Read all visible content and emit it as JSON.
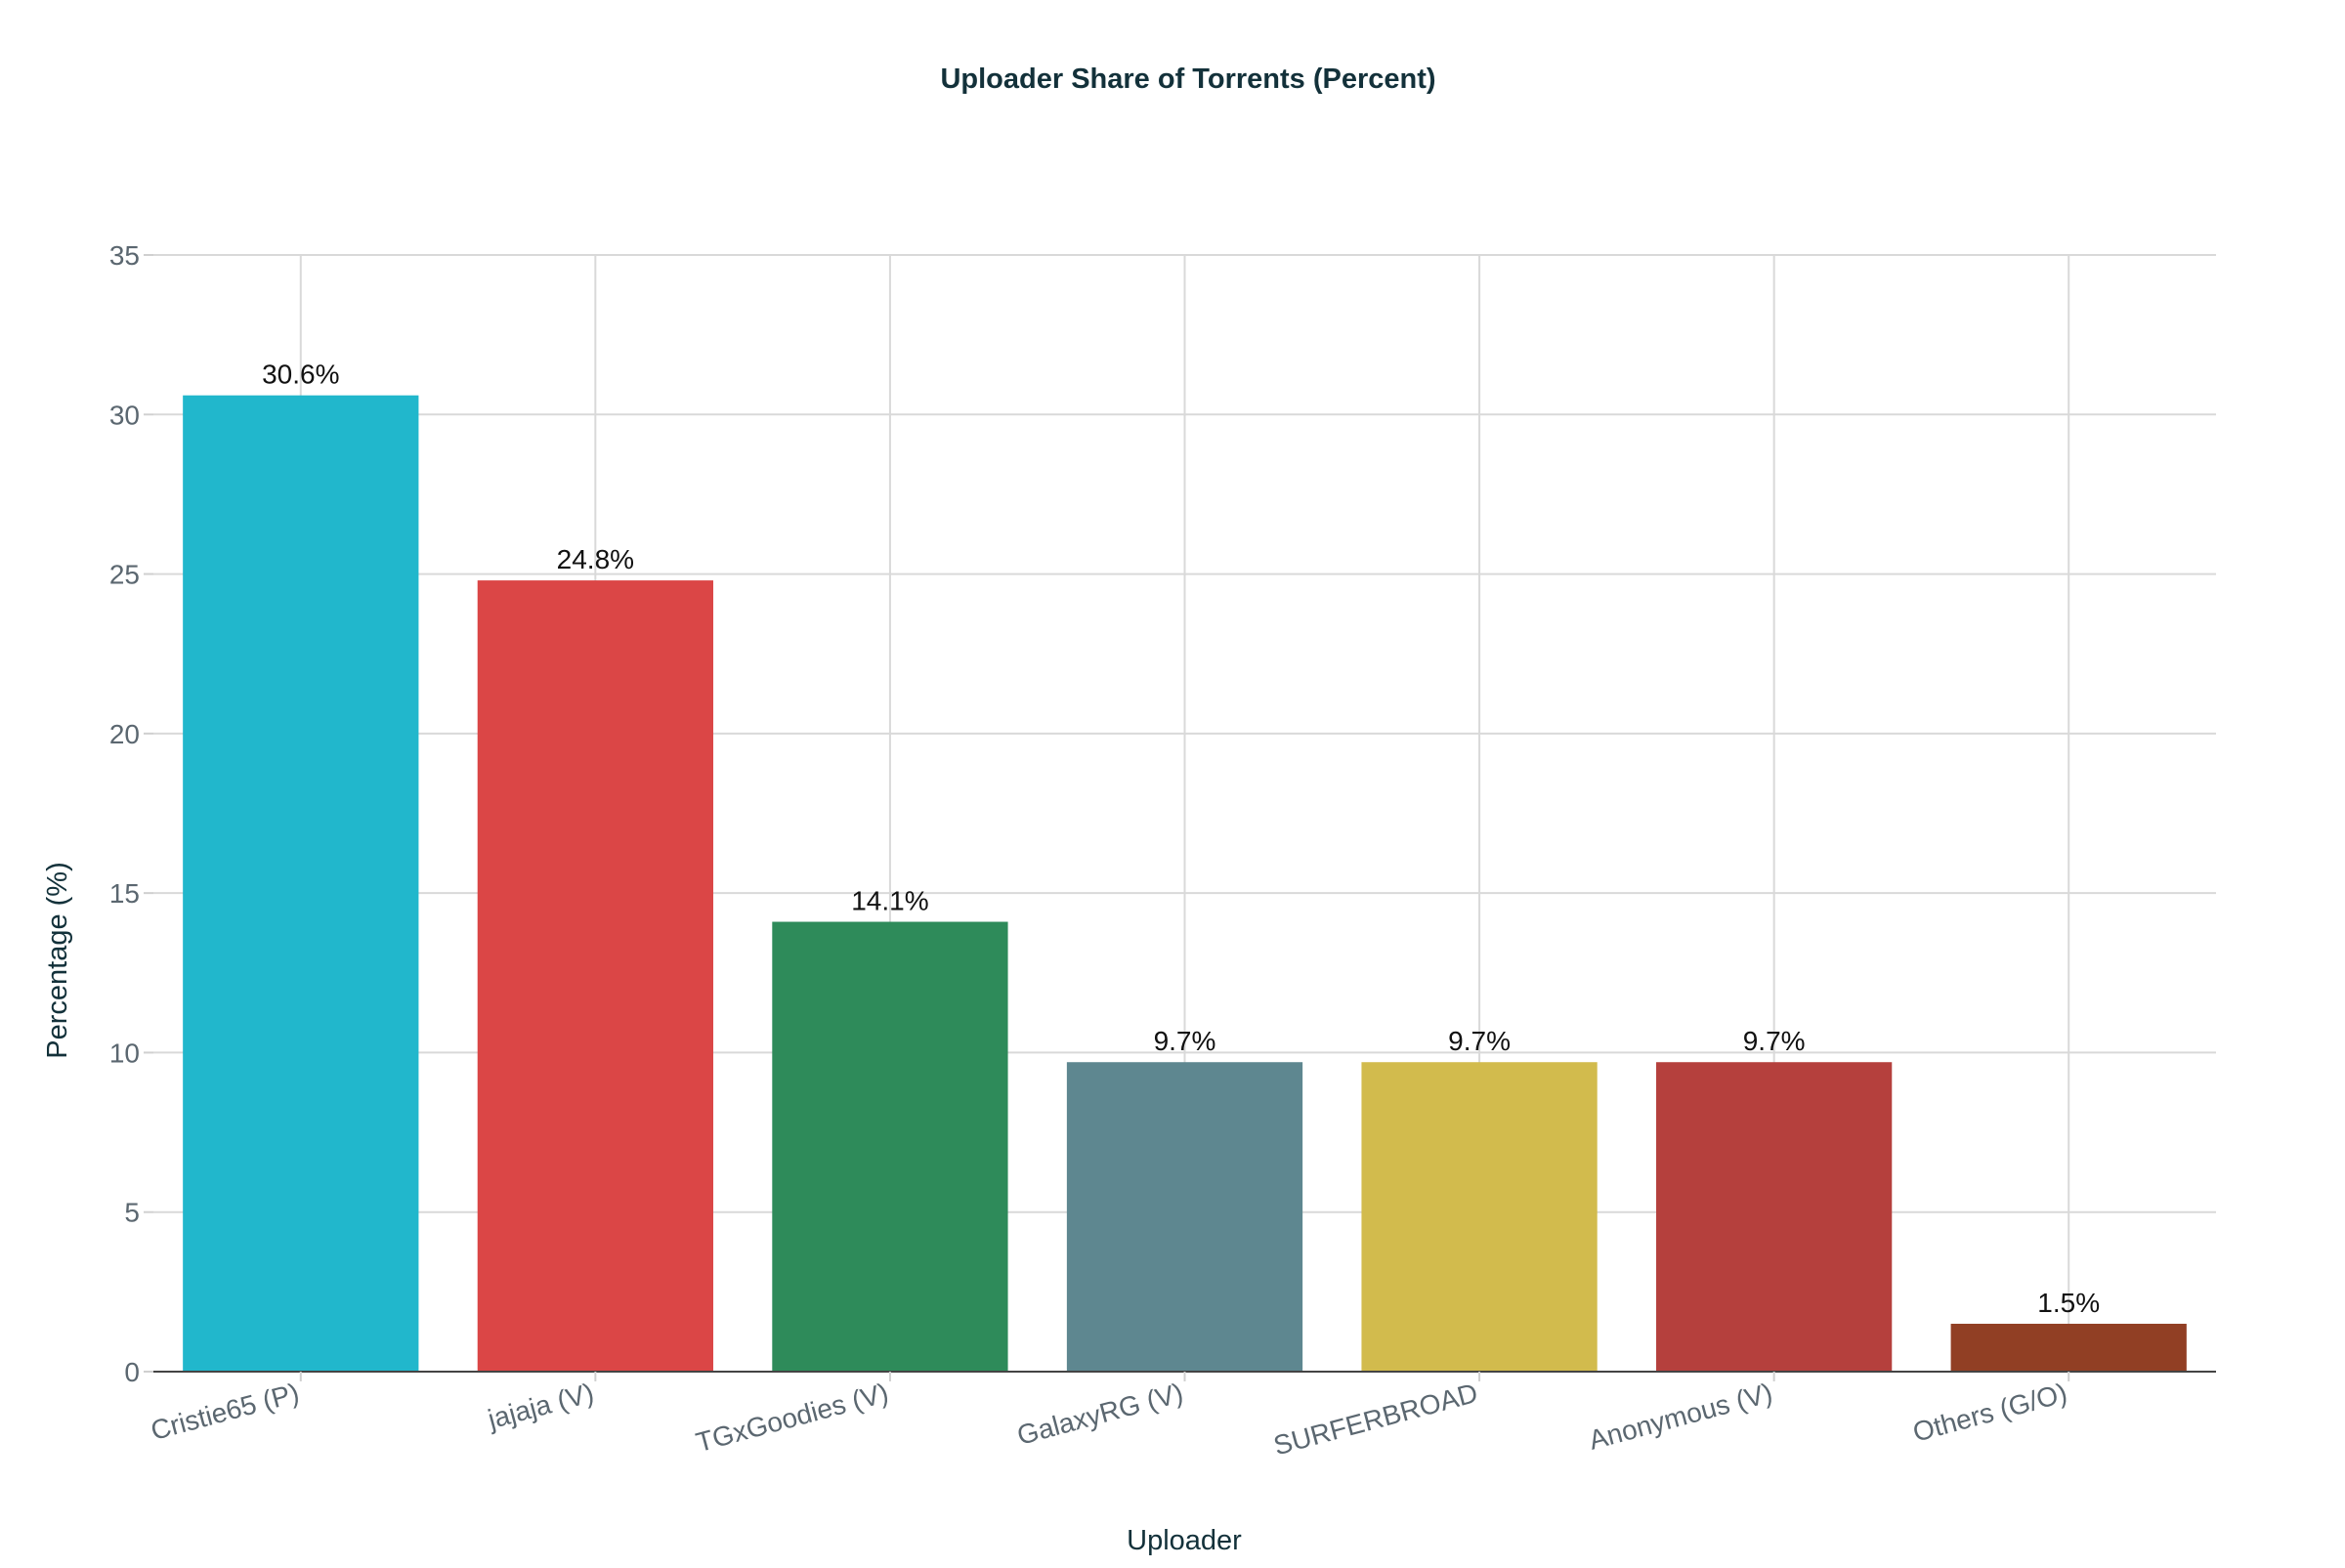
{
  "chart_data": {
    "type": "bar",
    "title": "Uploader Share of Torrents (Percent)",
    "xlabel": "Uploader",
    "ylabel": "Percentage (%)",
    "categories": [
      "Cristie65 (P)",
      "jajaja (V)",
      "TGxGoodies (V)",
      "GalaxyRG (V)",
      "SURFERBROAD",
      "Anonymous (V)",
      "Others (G/O)"
    ],
    "values": [
      30.6,
      24.8,
      14.1,
      9.7,
      9.7,
      9.7,
      1.5
    ],
    "data_labels": [
      "30.6%",
      "24.8%",
      "14.1%",
      "9.7%",
      "9.7%",
      "9.7%",
      "1.5%"
    ],
    "colors": [
      "#21b7cc",
      "#db4646",
      "#2e8b5a",
      "#5e8790",
      "#d2bb4d",
      "#b5403d",
      "#913f24"
    ],
    "ylim": [
      0,
      35
    ],
    "yticks": [
      0,
      5,
      10,
      15,
      20,
      25,
      30,
      35
    ],
    "grid": true,
    "legend": "none"
  }
}
